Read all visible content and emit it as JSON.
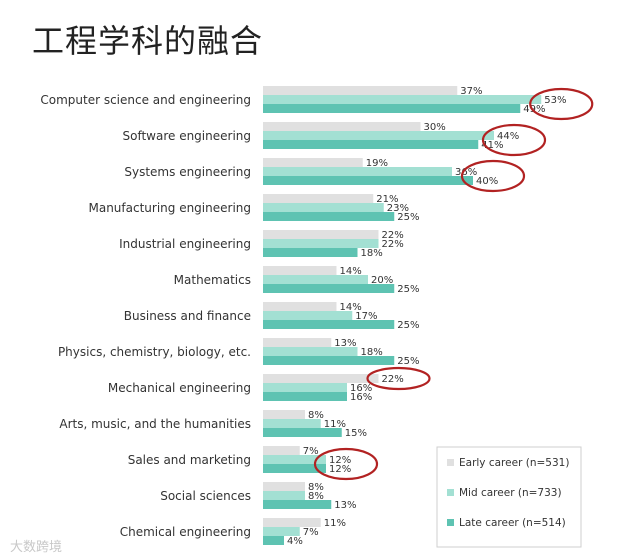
{
  "title": "工程学科的融合",
  "watermark": "大数跨境",
  "chart_data": {
    "type": "bar",
    "orientation": "horizontal",
    "title": "工程学科的融合",
    "xlim": [
      0,
      60
    ],
    "categories": [
      "Computer science and engineering",
      "Software engineering",
      "Systems engineering",
      "Manufacturing engineering",
      "Industrial engineering",
      "Mathematics",
      "Business and finance",
      "Physics, chemistry, biology, etc.",
      "Mechanical engineering",
      "Arts, music, and the humanities",
      "Sales and marketing",
      "Social sciences",
      "Chemical engineering"
    ],
    "series": [
      {
        "name": "Early career (n=531)",
        "color": "#e0e0e0",
        "values": [
          37,
          30,
          19,
          21,
          22,
          14,
          14,
          13,
          22,
          8,
          7,
          8,
          11
        ]
      },
      {
        "name": "Mid career (n=733)",
        "color": "#a3e0d3",
        "values": [
          53,
          44,
          36,
          23,
          22,
          20,
          17,
          18,
          16,
          11,
          12,
          8,
          7
        ]
      },
      {
        "name": "Late career (n=514)",
        "color": "#5ec3b2",
        "values": [
          49,
          41,
          40,
          25,
          18,
          25,
          25,
          25,
          16,
          15,
          12,
          13,
          4
        ]
      }
    ],
    "value_suffix": "%",
    "legend_position": "bottom-right",
    "highlights": [
      {
        "category_index": 0,
        "series": [
          1,
          2
        ]
      },
      {
        "category_index": 1,
        "series": [
          1,
          2
        ]
      },
      {
        "category_index": 2,
        "series": [
          1,
          2
        ]
      },
      {
        "category_index": 8,
        "series": [
          0
        ]
      },
      {
        "category_index": 10,
        "series": [
          1,
          2
        ]
      }
    ],
    "highlight_color": "#b22222"
  }
}
